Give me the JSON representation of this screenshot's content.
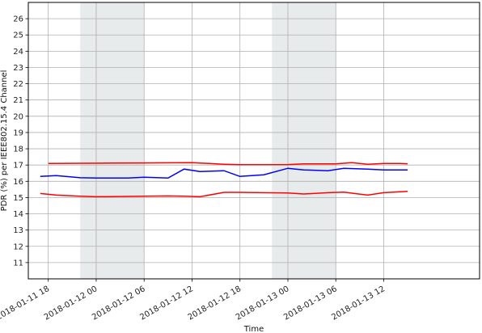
{
  "chart_data": {
    "type": "line",
    "title": "",
    "xlabel": "Time",
    "ylabel": "PDR (%) per IEEE802.15.4 Channel",
    "x_unit": "datetime",
    "xlim": [
      "2018-01-11 15:30",
      "2018-01-14 00:00"
    ],
    "ylim": [
      10,
      27
    ],
    "y_ticks": [
      11,
      12,
      13,
      14,
      15,
      16,
      17,
      18,
      19,
      20,
      21,
      22,
      23,
      24,
      25,
      26
    ],
    "x_ticks": [
      "2018-01-11 18:00",
      "2018-01-12 00:00",
      "2018-01-12 06:00",
      "2018-01-12 12:00",
      "2018-01-12 18:00",
      "2018-01-13 00:00",
      "2018-01-13 06:00",
      "2018-01-13 12:00"
    ],
    "x_tick_labels": [
      "2018-01-11 18",
      "2018-01-12 00",
      "2018-01-12 06",
      "2018-01-12 12",
      "2018-01-12 18",
      "2018-01-13 00",
      "2018-01-13 06",
      "2018-01-13 12"
    ],
    "grid": true,
    "legend": "none",
    "shaded_regions": [
      {
        "start": "2018-01-11 22:00",
        "end": "2018-01-12 06:00",
        "color": "#e8ebeb"
      },
      {
        "start": "2018-01-12 22:00",
        "end": "2018-01-13 06:00",
        "color": "#e8ebeb"
      }
    ],
    "series": [
      {
        "color": "#ff0000",
        "x": [
          "2018-01-11 18:00",
          "2018-01-12 02:00",
          "2018-01-12 06:00",
          "2018-01-12 12:00",
          "2018-01-12 16:00",
          "2018-01-12 18:00",
          "2018-01-13 00:00",
          "2018-01-13 02:00",
          "2018-01-13 06:00",
          "2018-01-13 08:00",
          "2018-01-13 10:00",
          "2018-01-13 12:00",
          "2018-01-13 14:00",
          "2018-01-13 15:00"
        ],
        "values": [
          17.1,
          17.12,
          17.13,
          17.15,
          17.05,
          17.02,
          17.03,
          17.07,
          17.07,
          17.15,
          17.05,
          17.1,
          17.1,
          17.08
        ]
      },
      {
        "color": "#0000ff",
        "x": [
          "2018-01-11 17:00",
          "2018-01-11 19:00",
          "2018-01-11 22:00",
          "2018-01-12 00:00",
          "2018-01-12 04:00",
          "2018-01-12 06:00",
          "2018-01-12 09:00",
          "2018-01-12 11:00",
          "2018-01-12 13:00",
          "2018-01-12 16:00",
          "2018-01-12 18:00",
          "2018-01-12 21:00",
          "2018-01-13 00:00",
          "2018-01-13 02:00",
          "2018-01-13 05:00",
          "2018-01-13 07:00",
          "2018-01-13 10:00",
          "2018-01-13 12:00",
          "2018-01-13 15:00"
        ],
        "values": [
          16.3,
          16.35,
          16.22,
          16.2,
          16.2,
          16.25,
          16.2,
          16.75,
          16.6,
          16.65,
          16.3,
          16.4,
          16.8,
          16.7,
          16.65,
          16.8,
          16.75,
          16.7,
          16.7
        ]
      },
      {
        "color": "#ff0000",
        "x": [
          "2018-01-11 17:00",
          "2018-01-11 19:00",
          "2018-01-11 22:00",
          "2018-01-12 00:00",
          "2018-01-12 04:00",
          "2018-01-12 06:00",
          "2018-01-12 09:00",
          "2018-01-12 11:00",
          "2018-01-12 13:00",
          "2018-01-12 16:00",
          "2018-01-12 18:00",
          "2018-01-12 21:00",
          "2018-01-13 00:00",
          "2018-01-13 02:00",
          "2018-01-13 05:00",
          "2018-01-13 07:00",
          "2018-01-13 10:00",
          "2018-01-13 12:00",
          "2018-01-13 15:00"
        ],
        "values": [
          15.25,
          15.15,
          15.08,
          15.05,
          15.07,
          15.08,
          15.1,
          15.08,
          15.05,
          15.32,
          15.32,
          15.3,
          15.28,
          15.22,
          15.3,
          15.33,
          15.15,
          15.3,
          15.38
        ]
      }
    ]
  }
}
